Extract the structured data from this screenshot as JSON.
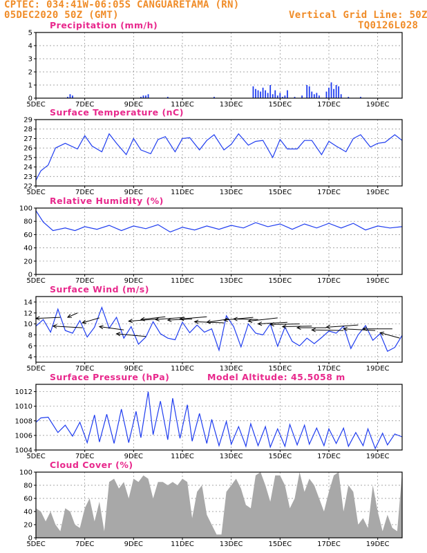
{
  "header": {
    "station_line": "CPTEC:   034:41W-06:05S   CANGUARETAMA (RN)",
    "datetime": "05DEC2020 50Z (GMT)",
    "grid_note": "Vertical Grid Line: 50Z",
    "code": "TQ0126L028"
  },
  "colors": {
    "header": "#f08c28",
    "titles": "#e8288c",
    "series": "#1e3cf0",
    "cloud": "#a8a8a8",
    "grid": "#888888"
  },
  "x_axis": {
    "day_ticks": [
      "5DEC",
      "7DEC",
      "9DEC",
      "11DEC",
      "13DEC",
      "15DEC",
      "17DEC",
      "19DEC"
    ],
    "day_values": [
      5,
      7,
      9,
      11,
      13,
      15,
      17,
      19
    ],
    "x_range": [
      5,
      20
    ]
  },
  "chart_data": [
    {
      "type": "bar",
      "title": "Precipitation (mm/h)",
      "ylim": [
        0,
        5
      ],
      "yticks": [
        "0",
        "1",
        "2",
        "3",
        "4",
        "5"
      ],
      "x": [
        6.3,
        6.4,
        6.5,
        9.3,
        9.4,
        9.5,
        9.6,
        10.4,
        12.3,
        13.9,
        14.0,
        14.1,
        14.2,
        14.3,
        14.4,
        14.5,
        14.6,
        14.7,
        14.8,
        14.9,
        15.0,
        15.1,
        15.2,
        15.3,
        15.6,
        15.9,
        16.1,
        16.2,
        16.3,
        16.4,
        16.5,
        16.6,
        16.9,
        17.0,
        17.1,
        17.2,
        17.3,
        17.4,
        17.5,
        17.8,
        18.3
      ],
      "values": [
        0.1,
        0.3,
        0.2,
        0.1,
        0.2,
        0.2,
        0.3,
        0.1,
        0.1,
        0.9,
        0.7,
        0.6,
        0.5,
        0.8,
        0.6,
        0.4,
        1.0,
        0.3,
        0.6,
        0.2,
        0.4,
        0.1,
        0.2,
        0.6,
        0.1,
        0.2,
        1.0,
        0.9,
        0.5,
        0.3,
        0.4,
        0.2,
        0.5,
        0.8,
        1.2,
        0.7,
        1.0,
        0.9,
        0.3,
        0.1,
        0.1
      ]
    },
    {
      "type": "line",
      "title": "Surface Temperature (nC)",
      "ylim": [
        22,
        29
      ],
      "yticks": [
        "22",
        "23",
        "24",
        "25",
        "26",
        "27",
        "28",
        "29"
      ],
      "x": [
        5.0,
        5.2,
        5.5,
        5.8,
        6.2,
        6.7,
        7.0,
        7.3,
        7.7,
        8.0,
        8.3,
        8.7,
        9.0,
        9.3,
        9.7,
        10.0,
        10.3,
        10.7,
        11.0,
        11.3,
        11.7,
        12.0,
        12.3,
        12.7,
        13.0,
        13.3,
        13.7,
        14.0,
        14.3,
        14.7,
        15.0,
        15.3,
        15.7,
        16.0,
        16.3,
        16.7,
        17.0,
        17.3,
        17.7,
        18.0,
        18.3,
        18.7,
        19.0,
        19.3,
        19.7,
        20.0
      ],
      "values": [
        22.6,
        23.6,
        24.2,
        26.0,
        26.5,
        25.9,
        27.3,
        26.2,
        25.6,
        27.5,
        26.5,
        25.3,
        27.0,
        25.8,
        25.4,
        26.9,
        27.2,
        25.6,
        27.0,
        27.1,
        25.8,
        26.8,
        27.4,
        25.8,
        26.4,
        27.5,
        26.3,
        26.7,
        26.8,
        25.0,
        26.9,
        25.9,
        25.9,
        26.8,
        26.8,
        25.3,
        26.7,
        26.2,
        25.6,
        27.0,
        27.4,
        26.1,
        26.5,
        26.6,
        27.4,
        26.8
      ]
    },
    {
      "type": "line",
      "title": "Relative Humidity (%)",
      "ylim": [
        0,
        100
      ],
      "yticks": [
        "0",
        "20",
        "40",
        "60",
        "80",
        "100"
      ],
      "x": [
        5.0,
        5.3,
        5.7,
        6.2,
        6.6,
        7.0,
        7.5,
        8.0,
        8.5,
        9.0,
        9.5,
        10.0,
        10.5,
        11.0,
        11.5,
        12.0,
        12.5,
        13.0,
        13.5,
        14.0,
        14.5,
        15.0,
        15.5,
        16.0,
        16.5,
        17.0,
        17.5,
        18.0,
        18.5,
        19.0,
        19.5,
        20.0
      ],
      "values": [
        96,
        79,
        66,
        70,
        66,
        72,
        68,
        74,
        66,
        73,
        69,
        75,
        64,
        71,
        67,
        73,
        68,
        74,
        70,
        78,
        72,
        76,
        68,
        76,
        70,
        77,
        70,
        77,
        67,
        73,
        70,
        72
      ]
    },
    {
      "type": "line",
      "title": "Surface Wind (m/s)",
      "ylim": [
        3,
        15
      ],
      "yticks": [
        "4",
        "6",
        "8",
        "10",
        "12",
        "14"
      ],
      "x": [
        5.0,
        5.3,
        5.6,
        5.9,
        6.2,
        6.5,
        6.8,
        7.1,
        7.4,
        7.7,
        8.0,
        8.3,
        8.6,
        8.9,
        9.2,
        9.5,
        9.8,
        10.1,
        10.4,
        10.7,
        11.0,
        11.3,
        11.6,
        11.9,
        12.2,
        12.5,
        12.8,
        13.1,
        13.4,
        13.7,
        14.0,
        14.3,
        14.6,
        14.9,
        15.2,
        15.5,
        15.8,
        16.1,
        16.4,
        16.7,
        17.0,
        17.3,
        17.6,
        17.9,
        18.2,
        18.5,
        18.8,
        19.1,
        19.4,
        19.7,
        20.0
      ],
      "values": [
        9.6,
        10.8,
        8.5,
        12.7,
        8.8,
        8.3,
        10.6,
        7.6,
        9.4,
        13.0,
        9.2,
        11.2,
        7.4,
        9.5,
        6.3,
        7.6,
        10.4,
        8.2,
        7.4,
        7.1,
        10.3,
        8.4,
        9.8,
        8.5,
        9.1,
        5.2,
        11.5,
        9.5,
        5.8,
        10.0,
        8.3,
        8.0,
        10.0,
        5.9,
        9.4,
        6.8,
        6.0,
        7.4,
        6.4,
        7.5,
        8.7,
        8.3,
        9.6,
        5.5,
        8.0,
        9.7,
        7.0,
        8.2,
        5.0,
        5.7,
        7.9
      ],
      "arrows_x": [
        5.0,
        5.7,
        6.3,
        6.9,
        7.6,
        8.3,
        8.8,
        9.3,
        9.9,
        10.4,
        10.9,
        11.5,
        12.0,
        12.7,
        13.1,
        13.7,
        14.1,
        14.6,
        15.1,
        15.7,
        16.3,
        16.9,
        17.6,
        18.4,
        19.1
      ],
      "arrows_dx": [
        1.0,
        1.2,
        0.4,
        0.7,
        1.0,
        1.2,
        1.2,
        1.0,
        1.2,
        1.0,
        1.1,
        1.2,
        0.9,
        1.2,
        1.0,
        1.2,
        1.2,
        1.2,
        1.2,
        1.2,
        1.3,
        1.3,
        1.3,
        1.2,
        0.8
      ],
      "arrows_dy": [
        0.2,
        -0.3,
        0.8,
        0.9,
        -0.6,
        -0.5,
        0.4,
        0.5,
        0.4,
        0.2,
        0.4,
        -0.2,
        0.6,
        0.5,
        -0.1,
        0.6,
        0.3,
        0.1,
        0.1,
        0.0,
        -0.1,
        0.4,
        -0.3,
        0.0,
        -1.0
      ],
      "arrows_y": [
        11.0,
        9.6,
        11.2,
        10.2,
        9.5,
        8.2,
        10.5,
        10.8,
        10.8,
        10.7,
        10.9,
        10.4,
        10.3,
        10.7,
        10.9,
        10.5,
        10.0,
        9.9,
        9.5,
        9.3,
        8.9,
        9.4,
        9.1,
        9.1,
        8.4
      ]
    },
    {
      "type": "line",
      "title": "Surface Pressure (hPa)",
      "annotation": "Model Altitude: 45.5058 m",
      "ylim": [
        1004,
        1013
      ],
      "yticks": [
        "1004",
        "1006",
        "1008",
        "1010",
        "1012"
      ],
      "x": [
        5.0,
        5.2,
        5.5,
        5.9,
        6.2,
        6.5,
        6.8,
        7.1,
        7.4,
        7.6,
        7.9,
        8.2,
        8.5,
        8.8,
        9.1,
        9.3,
        9.6,
        9.8,
        10.1,
        10.4,
        10.6,
        10.9,
        11.2,
        11.4,
        11.7,
        12.0,
        12.2,
        12.5,
        12.8,
        13.0,
        13.3,
        13.6,
        13.8,
        14.1,
        14.4,
        14.6,
        14.9,
        15.2,
        15.4,
        15.7,
        16.0,
        16.2,
        16.5,
        16.8,
        17.0,
        17.3,
        17.6,
        17.8,
        18.1,
        18.4,
        18.6,
        18.9,
        19.2,
        19.4,
        19.7,
        20.0
      ],
      "values": [
        1007.8,
        1008.4,
        1008.5,
        1006.4,
        1007.4,
        1005.9,
        1007.8,
        1005.0,
        1008.8,
        1005.1,
        1008.9,
        1004.9,
        1009.6,
        1005.0,
        1009.3,
        1005.7,
        1012.0,
        1006.1,
        1010.7,
        1005.4,
        1011.1,
        1005.6,
        1010.2,
        1005.2,
        1009.0,
        1004.9,
        1008.2,
        1004.6,
        1007.9,
        1004.8,
        1007.2,
        1004.5,
        1007.6,
        1004.6,
        1007.2,
        1004.4,
        1006.9,
        1004.5,
        1007.5,
        1004.7,
        1007.4,
        1004.8,
        1007.0,
        1004.6,
        1006.9,
        1004.9,
        1007.0,
        1004.5,
        1006.4,
        1004.6,
        1006.9,
        1004.2,
        1006.3,
        1004.7,
        1006.2,
        1005.8
      ]
    },
    {
      "type": "area",
      "title": "Cloud Cover (%)",
      "ylim": [
        0,
        100
      ],
      "yticks": [
        "0",
        "20",
        "40",
        "60",
        "80",
        "100"
      ],
      "x": [
        5.0,
        5.2,
        5.4,
        5.6,
        5.8,
        6.0,
        6.2,
        6.4,
        6.6,
        6.8,
        7.0,
        7.2,
        7.4,
        7.6,
        7.8,
        8.0,
        8.2,
        8.4,
        8.6,
        8.8,
        9.0,
        9.2,
        9.4,
        9.6,
        9.8,
        10.0,
        10.2,
        10.4,
        10.6,
        10.8,
        11.0,
        11.2,
        11.4,
        11.6,
        11.8,
        12.0,
        12.2,
        12.4,
        12.6,
        12.8,
        13.0,
        13.2,
        13.4,
        13.6,
        13.8,
        14.0,
        14.2,
        14.4,
        14.6,
        14.8,
        15.0,
        15.2,
        15.4,
        15.6,
        15.8,
        16.0,
        16.2,
        16.4,
        16.6,
        16.8,
        17.0,
        17.2,
        17.4,
        17.6,
        17.8,
        18.0,
        18.2,
        18.4,
        18.6,
        18.8,
        19.0,
        19.2,
        19.4,
        19.6,
        19.8,
        20.0
      ],
      "values": [
        45,
        40,
        25,
        40,
        20,
        10,
        45,
        40,
        20,
        15,
        45,
        60,
        25,
        55,
        10,
        85,
        90,
        75,
        85,
        60,
        90,
        85,
        95,
        90,
        60,
        85,
        85,
        80,
        85,
        80,
        90,
        85,
        30,
        70,
        80,
        35,
        20,
        5,
        5,
        70,
        80,
        90,
        75,
        50,
        45,
        95,
        100,
        80,
        55,
        95,
        95,
        80,
        45,
        60,
        100,
        70,
        90,
        80,
        60,
        40,
        70,
        95,
        100,
        40,
        80,
        70,
        20,
        30,
        15,
        80,
        40,
        10,
        35,
        15,
        10,
        100
      ]
    }
  ]
}
